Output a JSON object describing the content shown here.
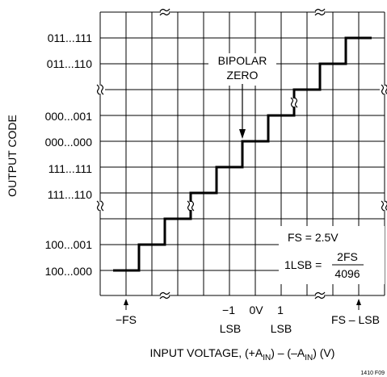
{
  "diagram": {
    "y_axis_title": "OUTPUT CODE",
    "y_codes": [
      "011...111",
      "011...110",
      "000...001",
      "000...000",
      "111...111",
      "111...110",
      "100...001",
      "100...000"
    ],
    "annotation": {
      "line1": "BIPOLAR",
      "line2": "ZERO"
    },
    "x_markers": {
      "neg_fs": "−FS",
      "minus_one": "−1",
      "zero_v": "0V",
      "plus_one": "1",
      "lsb_left": "LSB",
      "lsb_right": "LSB",
      "fs_minus_lsb": "FS – LSB"
    },
    "legend": {
      "fs_eq": "FS = 2.5V",
      "lsb_prefix": "1LSB =",
      "numerator": "2FS",
      "denominator": "4096"
    },
    "x_axis_title_prefix": "INPUT VOLTAGE, (+A",
    "x_axis_sub_in_1": "IN",
    "x_axis_mid": ") – (–A",
    "x_axis_sub_in_2": "IN",
    "x_axis_suffix": ") (V)",
    "figure_id": "1410 F09"
  }
}
